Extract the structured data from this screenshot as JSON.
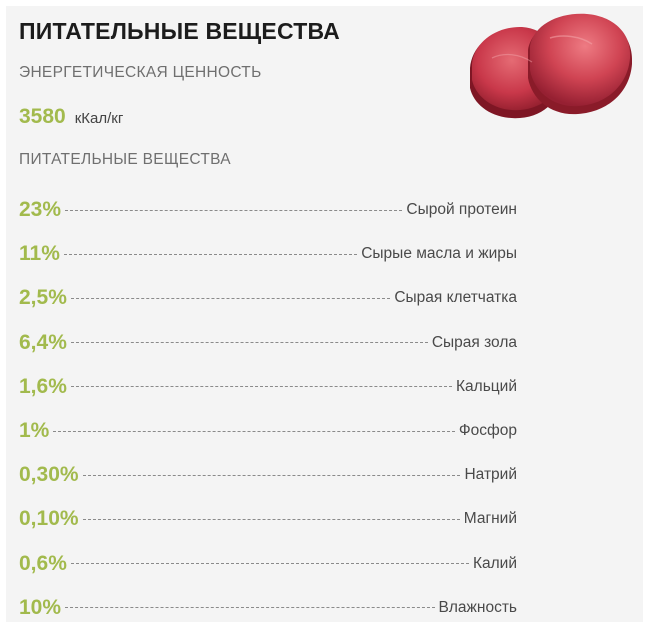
{
  "header": {
    "title": "ПИТАТЕЛЬНЫЕ ВЕЩЕСТВА"
  },
  "energy": {
    "heading": "ЭНЕРГЕТИЧЕСКАЯ ЦЕННОСТЬ",
    "value": "3580",
    "unit": "кКал/кг"
  },
  "nutrients": {
    "heading": "ПИТАТЕЛЬНЫЕ ВЕЩЕСТВА",
    "items": [
      {
        "value": "23%",
        "label": "Сырой протеин"
      },
      {
        "value": "11%",
        "label": "Сырые масла и жиры"
      },
      {
        "value": "2,5%",
        "label": "Сырая клетчатка"
      },
      {
        "value": "6,4%",
        "label": "Сырая зола"
      },
      {
        "value": "1,6%",
        "label": "Кальций"
      },
      {
        "value": "1%",
        "label": "Фосфор"
      },
      {
        "value": "0,30%",
        "label": "Натрий"
      },
      {
        "value": "0,10%",
        "label": "Магний"
      },
      {
        "value": "0,6%",
        "label": "Калий"
      },
      {
        "value": "10%",
        "label": "Влажность"
      }
    ]
  },
  "image": {
    "icon": "raw-meat-steak-image"
  },
  "colors": {
    "accent": "#a2ba4d",
    "background": "#f4f4f4",
    "text": "#4a4a4a"
  }
}
